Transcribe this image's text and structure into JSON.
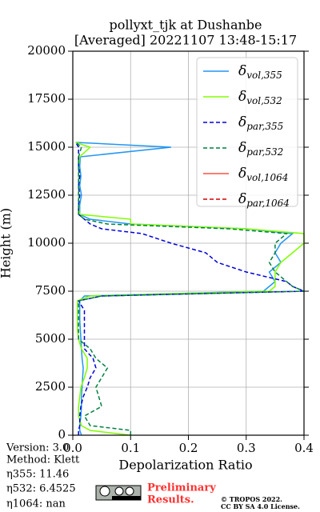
{
  "chart_data": {
    "type": "line",
    "title": [
      "pollyxt_tjk at Dushanbe",
      "[Averaged] 20221107 13:48-15:17"
    ],
    "x_label": "Depolarization Ratio",
    "y_label": "Height (m)",
    "orientation": "horizontal",
    "grid": true,
    "legend": "upper right",
    "xlim": [
      0,
      0.4
    ],
    "xticks": [
      {
        "value": 0,
        "label": "0.0"
      },
      0.1,
      0.2,
      0.3,
      0.4
    ],
    "ylim": [
      0,
      20000
    ],
    "yticks": [
      0,
      2500,
      5000,
      7500,
      10000,
      12500,
      15000,
      17500,
      20000
    ],
    "x": [
      0,
      250,
      500,
      1000,
      1500,
      2000,
      2500,
      3000,
      3500,
      4000,
      4500,
      5000,
      5500,
      6000,
      6500,
      7000,
      7250,
      7500,
      7750,
      8000,
      8500,
      9000,
      9500,
      10000,
      10500,
      10750,
      11000,
      11250,
      11500,
      12000,
      12500,
      13000,
      13500,
      14000,
      14500,
      15000,
      15250
    ],
    "series": [
      {
        "name": "δvol,355",
        "color": "#2196f3",
        "dashed": false,
        "values": [
          0.015,
          0.012,
          0.012,
          0.014,
          0.015,
          0.015,
          0.016,
          0.017,
          0.018,
          0.016,
          0.015,
          0.014,
          0.013,
          0.012,
          0.012,
          0.012,
          0.02,
          0.33,
          0.34,
          0.35,
          0.34,
          0.36,
          0.35,
          0.36,
          0.38,
          0.3,
          0.1,
          0.03,
          0.012,
          0.012,
          0.015,
          0.012,
          0.014,
          0.012,
          0.013,
          0.17,
          0.005
        ]
      },
      {
        "name": "δvol,532",
        "color": "#80ff00",
        "dashed": false,
        "values": [
          0.1,
          0.03,
          0.015,
          0.01,
          0.01,
          0.012,
          0.014,
          0.02,
          0.025,
          0.025,
          0.015,
          0.01,
          0.008,
          0.008,
          0.008,
          0.008,
          0.03,
          0.34,
          0.35,
          0.35,
          0.35,
          0.36,
          0.38,
          0.4,
          0.4,
          0.3,
          0.1,
          0.1,
          0.012,
          0.01,
          0.01,
          0.01,
          0.01,
          0.01,
          0.012,
          0.03,
          0.005
        ]
      },
      {
        "name": "δpar,355",
        "color": "#0000dd",
        "dashed": true,
        "values": [
          0.01,
          0.01,
          0.012,
          0.012,
          0.014,
          0.018,
          0.025,
          0.03,
          0.04,
          0.035,
          0.02,
          0.02,
          0.02,
          0.02,
          0.02,
          0.01,
          0.05,
          0.4,
          0.38,
          0.37,
          0.3,
          0.25,
          0.23,
          0.17,
          0.12,
          0.05,
          0.03,
          0.02,
          0.01,
          0.01,
          0.012,
          0.01,
          0.012,
          0.01,
          0.01,
          0.01,
          0.005
        ]
      },
      {
        "name": "δpar,532",
        "color": "#008040",
        "dashed": true,
        "values": [
          0.1,
          0.1,
          0.03,
          0.02,
          0.05,
          0.045,
          0.04,
          0.05,
          0.06,
          0.04,
          0.03,
          0.01,
          0.01,
          0.01,
          0.01,
          0.01,
          0.05,
          0.4,
          0.38,
          0.37,
          0.35,
          0.34,
          0.35,
          0.35,
          0.37,
          0.27,
          0.06,
          0.02,
          0.01,
          0.01,
          0.01,
          0.01,
          0.01,
          0.01,
          0.01,
          0.015,
          0.005
        ]
      },
      {
        "name": "δvol,1064",
        "color": "#ff5040",
        "dashed": false,
        "values": [
          null,
          null,
          null,
          null,
          null,
          null,
          null,
          null,
          null,
          null,
          null,
          null,
          null,
          null,
          null,
          null,
          null,
          null,
          null,
          null,
          null,
          null,
          null,
          null,
          null,
          null,
          null,
          null,
          null,
          null,
          null,
          null,
          null,
          null,
          null,
          null,
          null
        ]
      },
      {
        "name": "δpar,1064",
        "color": "#d00000",
        "dashed": true,
        "values": [
          null,
          null,
          null,
          null,
          null,
          null,
          null,
          null,
          null,
          null,
          null,
          null,
          null,
          null,
          null,
          null,
          null,
          null,
          null,
          null,
          null,
          null,
          null,
          null,
          null,
          null,
          null,
          null,
          null,
          null,
          null,
          null,
          null,
          null,
          null,
          null,
          null
        ]
      }
    ]
  },
  "info": [
    "Version: 3.0",
    "Method: Klett",
    "η355:  11.46",
    "η532: 6.4525",
    "η1064:    nan"
  ],
  "preliminary": [
    "Preliminary",
    "Results."
  ],
  "copyright": [
    "© TROPOS 2022.",
    "CC BY SA 4.0 License."
  ]
}
